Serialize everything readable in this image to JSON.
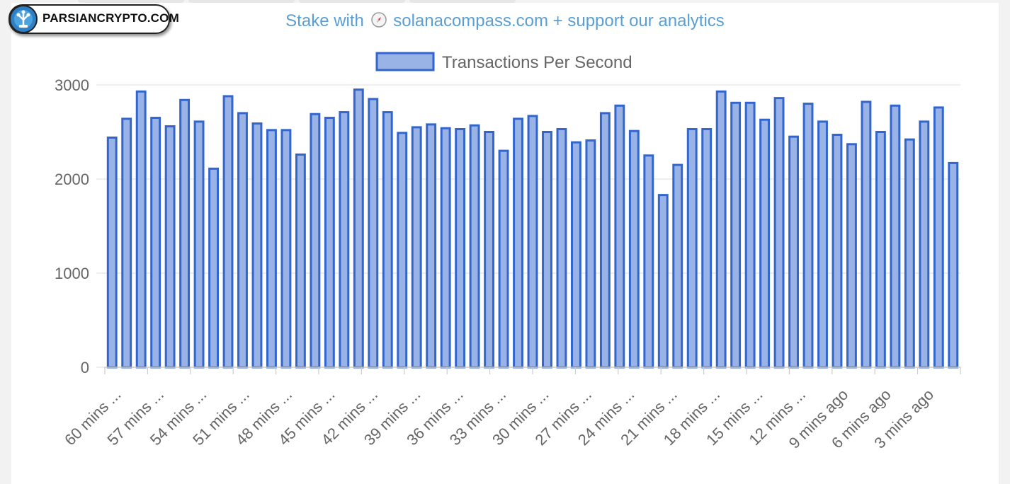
{
  "header": {
    "stake_prefix": "Stake with",
    "stake_suffix": "solanacompass.com + support our analytics"
  },
  "logo": {
    "text": "PARSIANCRYPTO.COM"
  },
  "colors": {
    "bar_fill": "#9ab3e6",
    "bar_stroke": "#3366cc",
    "grid": "#e5e5e5",
    "link": "#5a9fd4"
  },
  "chart_data": {
    "type": "bar",
    "legend": [
      "Transactions Per Second"
    ],
    "legend_position": "top",
    "grid": true,
    "ylim": [
      0,
      3000
    ],
    "yticks": [
      0,
      1000,
      2000,
      3000
    ],
    "xtick_labels": [
      "60 mins ...",
      "57 mins ...",
      "54 mins ...",
      "51 mins ...",
      "48 mins ...",
      "45 mins ...",
      "42 mins ...",
      "39 mins ...",
      "36 mins ...",
      "33 mins ...",
      "30 mins ...",
      "27 mins ...",
      "24 mins ...",
      "21 mins ...",
      "18 mins ...",
      "15 mins ...",
      "12 mins ...",
      "9 mins ago",
      "6 mins ago",
      "3 mins ago"
    ],
    "series": [
      {
        "name": "Transactions Per Second",
        "values": [
          2440,
          2640,
          2930,
          2650,
          2560,
          2840,
          2610,
          2110,
          2880,
          2700,
          2590,
          2520,
          2520,
          2260,
          2690,
          2650,
          2710,
          2950,
          2850,
          2710,
          2490,
          2550,
          2580,
          2540,
          2530,
          2570,
          2500,
          2300,
          2640,
          2670,
          2500,
          2530,
          2390,
          2410,
          2700,
          2780,
          2510,
          2250,
          1830,
          2150,
          2530,
          2530,
          2930,
          2810,
          2810,
          2630,
          2860,
          2450,
          2800,
          2610,
          2470,
          2370,
          2820,
          2500,
          2780,
          2420,
          2610,
          2760,
          2170
        ]
      }
    ]
  }
}
